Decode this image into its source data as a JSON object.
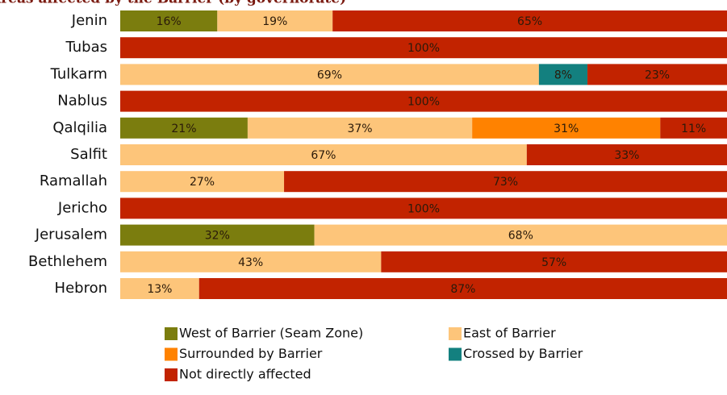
{
  "chart_data": {
    "type": "stacked-barh",
    "title": "Areas affected by the Barrier (by governorate)",
    "categories": [
      "Jenin",
      "Tubas",
      "Tulkarm",
      "Nablus",
      "Qalqilia",
      "Salfit",
      "Ramallah",
      "Jericho",
      "Jerusalem",
      "Bethlehem",
      "Hebron"
    ],
    "xlim": [
      0,
      100
    ],
    "series": [
      {
        "name": "West of Barrier (Seam Zone)",
        "color": "#7b7d0e",
        "values": [
          16,
          null,
          null,
          null,
          21,
          null,
          null,
          null,
          32,
          null,
          null
        ],
        "value_labels": [
          "16%",
          null,
          null,
          null,
          "21%",
          null,
          null,
          null,
          "32%",
          null,
          null
        ]
      },
      {
        "name": "East of Barrier",
        "color": "#fdc57a",
        "values": [
          19,
          null,
          69,
          null,
          37,
          67,
          27,
          null,
          68,
          43,
          13
        ],
        "value_labels": [
          "19%",
          null,
          "69%",
          null,
          "37%",
          "67%",
          "27%",
          null,
          "68%",
          "43%",
          "13%"
        ]
      },
      {
        "name": "Surrounded by Barrier",
        "color": "#ff8200",
        "values": [
          null,
          null,
          null,
          null,
          31,
          null,
          null,
          null,
          null,
          null,
          null
        ],
        "value_labels": [
          null,
          null,
          null,
          null,
          "31%",
          null,
          null,
          null,
          null,
          null,
          null
        ]
      },
      {
        "name": "Crossed by Barrier",
        "color": "#13807f",
        "values": [
          null,
          null,
          8,
          null,
          null,
          null,
          null,
          null,
          null,
          null,
          null
        ],
        "value_labels": [
          null,
          null,
          "8%",
          null,
          null,
          null,
          null,
          null,
          null,
          null,
          null
        ]
      },
      {
        "name": "Not directly affected",
        "color": "#c22300",
        "values": [
          65,
          100,
          23,
          100,
          11,
          33,
          73,
          100,
          null,
          57,
          87
        ],
        "value_labels": [
          "65%",
          "100%",
          "23%",
          "100%",
          "11%",
          "33%",
          "73%",
          "100%",
          null,
          "57%",
          "87%"
        ]
      }
    ],
    "legend": "bottom"
  }
}
